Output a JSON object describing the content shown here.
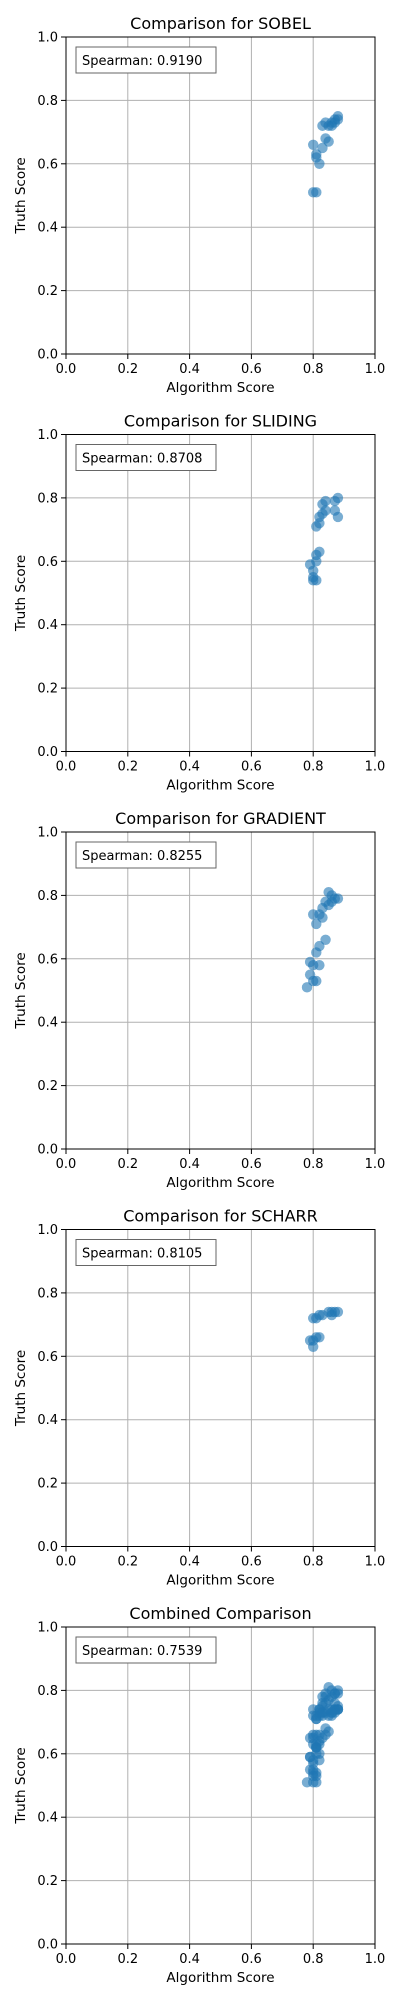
{
  "chart_data": [
    {
      "type": "scatter",
      "title": "Comparison for SOBEL",
      "xlabel": "Algorithm Score",
      "ylabel": "Truth Score",
      "xlim": [
        0,
        1
      ],
      "ylim": [
        0,
        1
      ],
      "xticks": [
        "0.0",
        "0.2",
        "0.4",
        "0.6",
        "0.8",
        "1.0"
      ],
      "yticks": [
        "0.0",
        "0.2",
        "0.4",
        "0.6",
        "0.8",
        "1.0"
      ],
      "grid": true,
      "annotation": "Spearman: 0.9190",
      "point_color": "#1f77b4",
      "points": [
        [
          0.8,
          0.66
        ],
        [
          0.81,
          0.63
        ],
        [
          0.81,
          0.62
        ],
        [
          0.82,
          0.6
        ],
        [
          0.81,
          0.51
        ],
        [
          0.8,
          0.51
        ],
        [
          0.83,
          0.65
        ],
        [
          0.84,
          0.68
        ],
        [
          0.85,
          0.67
        ],
        [
          0.83,
          0.72
        ],
        [
          0.84,
          0.73
        ],
        [
          0.85,
          0.72
        ],
        [
          0.86,
          0.73
        ],
        [
          0.87,
          0.73
        ],
        [
          0.87,
          0.74
        ],
        [
          0.88,
          0.75
        ],
        [
          0.88,
          0.74
        ],
        [
          0.86,
          0.72
        ]
      ]
    },
    {
      "type": "scatter",
      "title": "Comparison for SLIDING",
      "xlabel": "Algorithm Score",
      "ylabel": "Truth Score",
      "xlim": [
        0,
        1
      ],
      "ylim": [
        0,
        1
      ],
      "xticks": [
        "0.0",
        "0.2",
        "0.4",
        "0.6",
        "0.8",
        "1.0"
      ],
      "yticks": [
        "0.0",
        "0.2",
        "0.4",
        "0.6",
        "0.8",
        "1.0"
      ],
      "grid": true,
      "annotation": "Spearman: 0.8708",
      "point_color": "#1f77b4",
      "points": [
        [
          0.8,
          0.54
        ],
        [
          0.8,
          0.55
        ],
        [
          0.81,
          0.54
        ],
        [
          0.8,
          0.57
        ],
        [
          0.79,
          0.59
        ],
        [
          0.81,
          0.6
        ],
        [
          0.81,
          0.62
        ],
        [
          0.82,
          0.63
        ],
        [
          0.81,
          0.71
        ],
        [
          0.82,
          0.72
        ],
        [
          0.82,
          0.74
        ],
        [
          0.83,
          0.75
        ],
        [
          0.84,
          0.76
        ],
        [
          0.83,
          0.78
        ],
        [
          0.84,
          0.79
        ],
        [
          0.87,
          0.79
        ],
        [
          0.88,
          0.8
        ],
        [
          0.87,
          0.76
        ],
        [
          0.88,
          0.74
        ]
      ]
    },
    {
      "type": "scatter",
      "title": "Comparison for GRADIENT",
      "xlabel": "Algorithm Score",
      "ylabel": "Truth Score",
      "xlim": [
        0,
        1
      ],
      "ylim": [
        0,
        1
      ],
      "xticks": [
        "0.0",
        "0.2",
        "0.4",
        "0.6",
        "0.8",
        "1.0"
      ],
      "yticks": [
        "0.0",
        "0.2",
        "0.4",
        "0.6",
        "0.8",
        "1.0"
      ],
      "grid": true,
      "annotation": "Spearman: 0.8255",
      "point_color": "#1f77b4",
      "points": [
        [
          0.78,
          0.51
        ],
        [
          0.8,
          0.53
        ],
        [
          0.81,
          0.53
        ],
        [
          0.79,
          0.55
        ],
        [
          0.8,
          0.58
        ],
        [
          0.82,
          0.58
        ],
        [
          0.79,
          0.59
        ],
        [
          0.81,
          0.62
        ],
        [
          0.82,
          0.64
        ],
        [
          0.84,
          0.66
        ],
        [
          0.81,
          0.71
        ],
        [
          0.8,
          0.74
        ],
        [
          0.82,
          0.74
        ],
        [
          0.83,
          0.73
        ],
        [
          0.83,
          0.76
        ],
        [
          0.85,
          0.77
        ],
        [
          0.84,
          0.78
        ],
        [
          0.86,
          0.78
        ],
        [
          0.87,
          0.79
        ],
        [
          0.88,
          0.79
        ],
        [
          0.85,
          0.81
        ],
        [
          0.86,
          0.8
        ]
      ]
    },
    {
      "type": "scatter",
      "title": "Comparison for SCHARR",
      "xlabel": "Algorithm Score",
      "ylabel": "Truth Score",
      "xlim": [
        0,
        1
      ],
      "ylim": [
        0,
        1
      ],
      "xticks": [
        "0.0",
        "0.2",
        "0.4",
        "0.6",
        "0.8",
        "1.0"
      ],
      "yticks": [
        "0.0",
        "0.2",
        "0.4",
        "0.6",
        "0.8",
        "1.0"
      ],
      "grid": true,
      "annotation": "Spearman: 0.8105",
      "point_color": "#1f77b4",
      "points": [
        [
          0.79,
          0.65
        ],
        [
          0.8,
          0.65
        ],
        [
          0.81,
          0.66
        ],
        [
          0.82,
          0.66
        ],
        [
          0.8,
          0.63
        ],
        [
          0.8,
          0.72
        ],
        [
          0.81,
          0.72
        ],
        [
          0.82,
          0.73
        ],
        [
          0.83,
          0.73
        ],
        [
          0.85,
          0.74
        ],
        [
          0.86,
          0.74
        ],
        [
          0.87,
          0.74
        ],
        [
          0.88,
          0.74
        ],
        [
          0.86,
          0.73
        ]
      ]
    },
    {
      "type": "scatter",
      "title": "Combined Comparison",
      "xlabel": "Algorithm Score",
      "ylabel": "Truth Score",
      "xlim": [
        0,
        1
      ],
      "ylim": [
        0,
        1
      ],
      "xticks": [
        "0.0",
        "0.2",
        "0.4",
        "0.6",
        "0.8",
        "1.0"
      ],
      "yticks": [
        "0.0",
        "0.2",
        "0.4",
        "0.6",
        "0.8",
        "1.0"
      ],
      "grid": true,
      "annotation": "Spearman: 0.7539",
      "point_color": "#1f77b4",
      "points": [
        [
          0.8,
          0.66
        ],
        [
          0.81,
          0.63
        ],
        [
          0.81,
          0.62
        ],
        [
          0.82,
          0.6
        ],
        [
          0.81,
          0.51
        ],
        [
          0.8,
          0.51
        ],
        [
          0.83,
          0.65
        ],
        [
          0.84,
          0.68
        ],
        [
          0.85,
          0.67
        ],
        [
          0.83,
          0.72
        ],
        [
          0.84,
          0.73
        ],
        [
          0.85,
          0.72
        ],
        [
          0.86,
          0.73
        ],
        [
          0.87,
          0.73
        ],
        [
          0.87,
          0.74
        ],
        [
          0.88,
          0.75
        ],
        [
          0.88,
          0.74
        ],
        [
          0.86,
          0.72
        ],
        [
          0.8,
          0.54
        ],
        [
          0.8,
          0.55
        ],
        [
          0.81,
          0.54
        ],
        [
          0.8,
          0.57
        ],
        [
          0.79,
          0.59
        ],
        [
          0.81,
          0.6
        ],
        [
          0.81,
          0.62
        ],
        [
          0.82,
          0.63
        ],
        [
          0.81,
          0.71
        ],
        [
          0.82,
          0.72
        ],
        [
          0.82,
          0.74
        ],
        [
          0.83,
          0.75
        ],
        [
          0.84,
          0.76
        ],
        [
          0.83,
          0.78
        ],
        [
          0.84,
          0.79
        ],
        [
          0.87,
          0.79
        ],
        [
          0.88,
          0.8
        ],
        [
          0.87,
          0.76
        ],
        [
          0.88,
          0.74
        ],
        [
          0.78,
          0.51
        ],
        [
          0.8,
          0.53
        ],
        [
          0.81,
          0.53
        ],
        [
          0.79,
          0.55
        ],
        [
          0.8,
          0.58
        ],
        [
          0.82,
          0.58
        ],
        [
          0.79,
          0.59
        ],
        [
          0.81,
          0.62
        ],
        [
          0.82,
          0.64
        ],
        [
          0.84,
          0.66
        ],
        [
          0.81,
          0.71
        ],
        [
          0.8,
          0.74
        ],
        [
          0.82,
          0.74
        ],
        [
          0.83,
          0.73
        ],
        [
          0.83,
          0.76
        ],
        [
          0.85,
          0.77
        ],
        [
          0.84,
          0.78
        ],
        [
          0.86,
          0.78
        ],
        [
          0.87,
          0.79
        ],
        [
          0.88,
          0.79
        ],
        [
          0.85,
          0.81
        ],
        [
          0.86,
          0.8
        ],
        [
          0.79,
          0.65
        ],
        [
          0.8,
          0.65
        ],
        [
          0.81,
          0.66
        ],
        [
          0.82,
          0.66
        ],
        [
          0.8,
          0.63
        ],
        [
          0.8,
          0.72
        ],
        [
          0.81,
          0.72
        ],
        [
          0.82,
          0.73
        ],
        [
          0.83,
          0.73
        ],
        [
          0.85,
          0.74
        ],
        [
          0.86,
          0.74
        ],
        [
          0.87,
          0.74
        ],
        [
          0.88,
          0.74
        ],
        [
          0.86,
          0.73
        ]
      ]
    }
  ]
}
